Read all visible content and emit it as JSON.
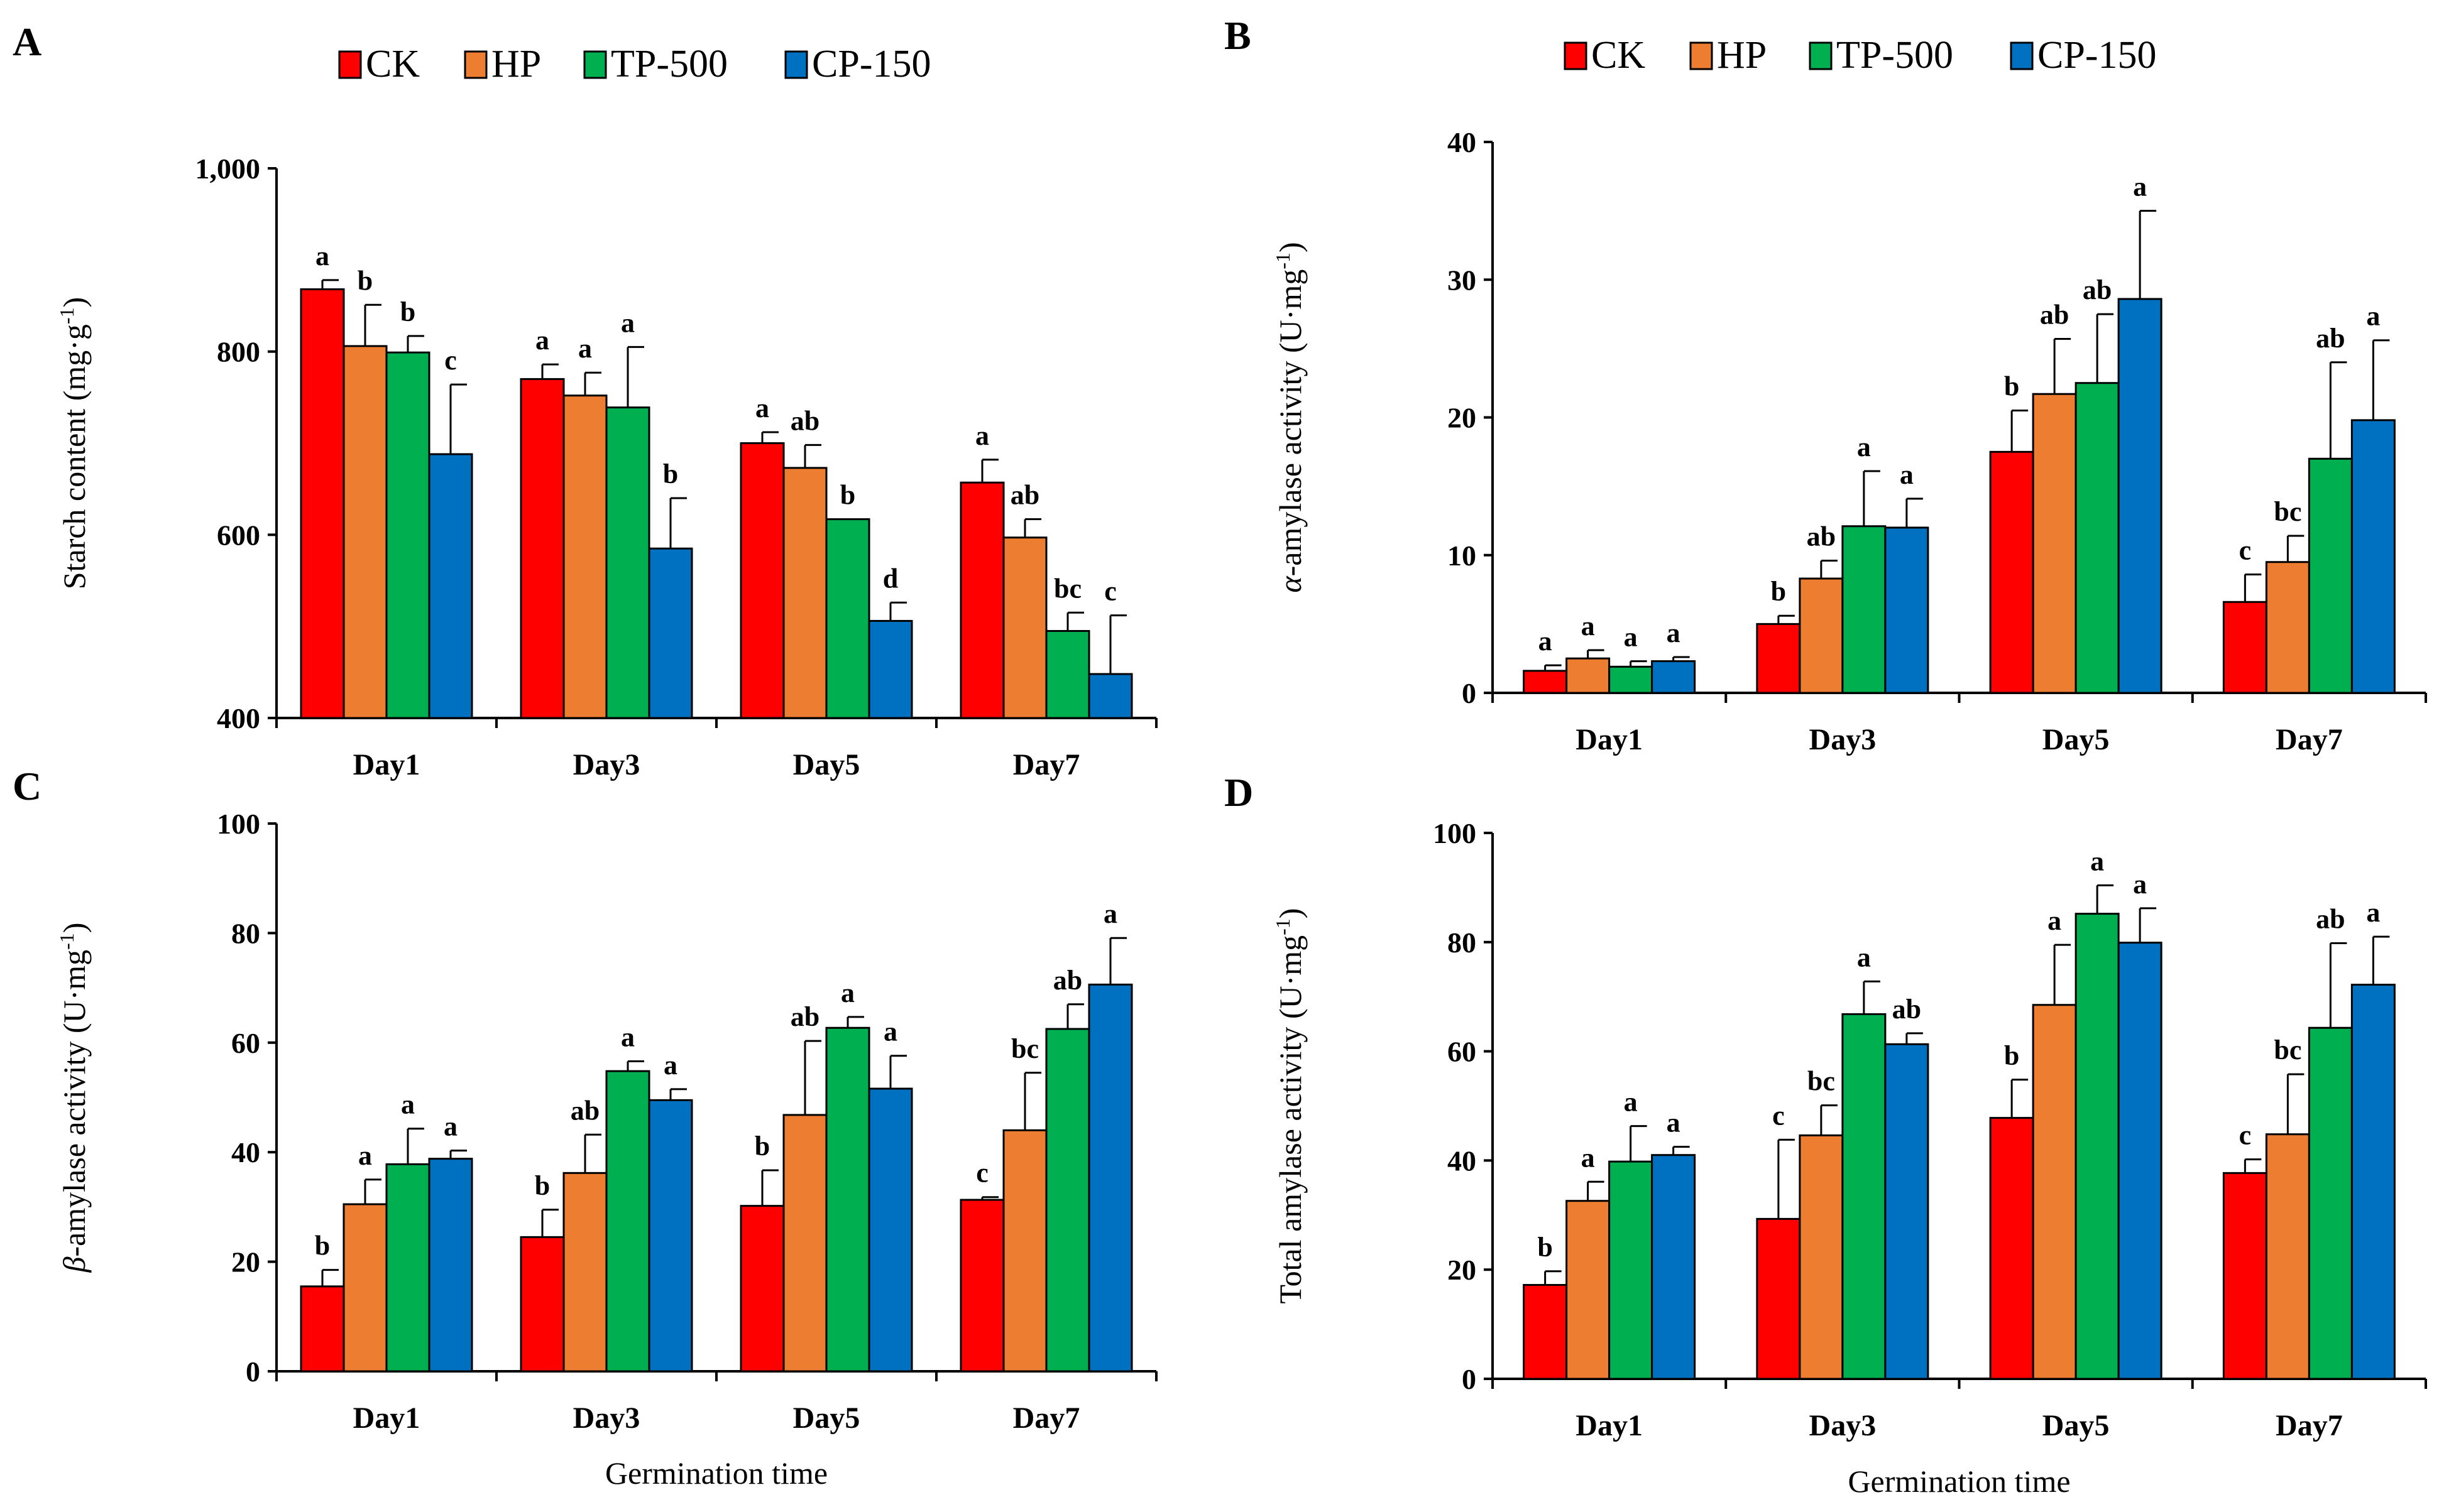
{
  "colors": {
    "CK": "#ff0000",
    "HP": "#ed7d31",
    "TP-500": "#00b050",
    "CP-150": "#0070c0"
  },
  "chart_data": [
    {
      "type": "bar",
      "panel": "A",
      "title": "",
      "xlabel": "",
      "ylabel": "Starch content (mg·g⁻¹)",
      "ylabel_parts": [
        "Starch content (mg·g",
        "-1",
        ")"
      ],
      "ylim": [
        400,
        1000
      ],
      "yticks": [
        400,
        600,
        800,
        1000
      ],
      "ytick_labels": [
        "400",
        "600",
        "800",
        "1,000"
      ],
      "categories": [
        "Day1",
        "Day3",
        "Day5",
        "Day7"
      ],
      "legend": [
        "CK",
        "HP",
        "TP-500",
        "CP-150"
      ],
      "series": [
        {
          "name": "CK",
          "values": [
            868,
            770,
            700,
            657
          ],
          "errors": [
            10,
            16,
            12,
            25
          ],
          "labels": [
            "a",
            "a",
            "a",
            "a"
          ]
        },
        {
          "name": "HP",
          "values": [
            806,
            752,
            673,
            597
          ],
          "errors": [
            45,
            25,
            25,
            20
          ],
          "labels": [
            "b",
            "a",
            "ab",
            "ab"
          ]
        },
        {
          "name": "TP-500",
          "values": [
            799,
            739,
            617,
            495
          ],
          "errors": [
            18,
            66,
            0,
            20
          ],
          "labels": [
            "b",
            "a",
            "b",
            "bc"
          ]
        },
        {
          "name": "CP-150",
          "values": [
            688,
            585,
            506,
            448
          ],
          "errors": [
            76,
            55,
            20,
            64
          ],
          "labels": [
            "c",
            "b",
            "d",
            "c"
          ]
        }
      ]
    },
    {
      "type": "bar",
      "panel": "B",
      "title": "",
      "xlabel": "",
      "ylabel": "α-amylase activity (U·mg⁻¹)",
      "ylabel_parts": [
        "α",
        "-amylase activity (U·mg",
        "-1",
        ")"
      ],
      "ylim": [
        0,
        40
      ],
      "yticks": [
        0,
        10,
        20,
        30,
        40
      ],
      "ytick_labels": [
        "0",
        "10",
        "20",
        "30",
        "40"
      ],
      "categories": [
        "Day1",
        "Day3",
        "Day5",
        "Day7"
      ],
      "legend": [
        "CK",
        "HP",
        "TP-500",
        "CP-150"
      ],
      "series": [
        {
          "name": "CK",
          "values": [
            1.6,
            5.0,
            17.5,
            6.6
          ],
          "errors": [
            0.4,
            0.6,
            3.0,
            2.0
          ],
          "labels": [
            "a",
            "b",
            "b",
            "c"
          ]
        },
        {
          "name": "HP",
          "values": [
            2.5,
            8.3,
            21.7,
            9.5
          ],
          "errors": [
            0.6,
            1.3,
            4.0,
            1.9
          ],
          "labels": [
            "a",
            "ab",
            "ab",
            "bc"
          ]
        },
        {
          "name": "TP-500",
          "values": [
            1.9,
            12.1,
            22.5,
            17.0
          ],
          "errors": [
            0.4,
            4.0,
            5.0,
            7.0
          ],
          "labels": [
            "a",
            "a",
            "ab",
            "ab"
          ]
        },
        {
          "name": "CP-150",
          "values": [
            2.3,
            12.0,
            28.6,
            19.8
          ],
          "errors": [
            0.3,
            2.1,
            6.4,
            5.8
          ],
          "labels": [
            "a",
            "a",
            "a",
            "a"
          ]
        }
      ]
    },
    {
      "type": "bar",
      "panel": "C",
      "title": "",
      "xlabel": "Germination time",
      "ylabel": "β-amylase activity (U·mg⁻¹)",
      "ylabel_parts": [
        "β",
        "-amylase activity (U·mg",
        "-1",
        ")"
      ],
      "ylim": [
        0,
        100
      ],
      "yticks": [
        0,
        20,
        40,
        60,
        80,
        100
      ],
      "ytick_labels": [
        "0",
        "20",
        "40",
        "60",
        "80",
        "100"
      ],
      "categories": [
        "Day1",
        "Day3",
        "Day5",
        "Day7"
      ],
      "legend": [
        "CK",
        "HP",
        "TP-500",
        "CP-150"
      ],
      "series": [
        {
          "name": "CK",
          "values": [
            15.5,
            24.5,
            30.2,
            31.3
          ],
          "errors": [
            3.0,
            5.0,
            6.5,
            0.5
          ],
          "labels": [
            "b",
            "b",
            "b",
            "c"
          ]
        },
        {
          "name": "HP",
          "values": [
            30.5,
            36.2,
            46.8,
            44.0
          ],
          "errors": [
            4.5,
            7.0,
            13.5,
            10.5
          ],
          "labels": [
            "a",
            "ab",
            "ab",
            "bc"
          ]
        },
        {
          "name": "TP-500",
          "values": [
            37.8,
            54.8,
            62.7,
            62.5
          ],
          "errors": [
            6.5,
            1.8,
            2.0,
            4.5
          ],
          "labels": [
            "a",
            "a",
            "a",
            "ab"
          ]
        },
        {
          "name": "CP-150",
          "values": [
            38.8,
            49.5,
            51.6,
            70.6
          ],
          "errors": [
            1.5,
            2.0,
            6.0,
            8.5
          ],
          "labels": [
            "a",
            "a",
            "a",
            "a"
          ]
        }
      ]
    },
    {
      "type": "bar",
      "panel": "D",
      "title": "",
      "xlabel": "Germination time",
      "ylabel": "Total amylase activity (U·mg⁻¹)",
      "ylabel_parts": [
        "Total amylase activity (U·mg",
        "-1",
        ")"
      ],
      "ylim": [
        0,
        100
      ],
      "yticks": [
        0,
        20,
        40,
        60,
        80,
        100
      ],
      "ytick_labels": [
        "0",
        "20",
        "40",
        "60",
        "80",
        "100"
      ],
      "categories": [
        "Day1",
        "Day3",
        "Day5",
        "Day7"
      ],
      "legend": [
        "CK",
        "HP",
        "TP-500",
        "CP-150"
      ],
      "series": [
        {
          "name": "CK",
          "values": [
            17.2,
            29.3,
            47.8,
            37.7
          ],
          "errors": [
            2.5,
            14.5,
            7.0,
            2.5
          ],
          "labels": [
            "b",
            "c",
            "b",
            "c"
          ]
        },
        {
          "name": "HP",
          "values": [
            32.6,
            44.6,
            68.5,
            44.8
          ],
          "errors": [
            3.5,
            5.5,
            11.0,
            11.0
          ],
          "labels": [
            "a",
            "bc",
            "a",
            "bc"
          ]
        },
        {
          "name": "TP-500",
          "values": [
            39.8,
            66.8,
            85.2,
            64.3
          ],
          "errors": [
            6.5,
            6.0,
            5.2,
            15.5
          ],
          "labels": [
            "a",
            "a",
            "a",
            "ab"
          ]
        },
        {
          "name": "CP-150",
          "values": [
            41.0,
            61.3,
            79.9,
            72.2
          ],
          "errors": [
            1.5,
            2.0,
            6.3,
            8.8
          ],
          "labels": [
            "a",
            "ab",
            "a",
            "a"
          ]
        }
      ]
    }
  ]
}
